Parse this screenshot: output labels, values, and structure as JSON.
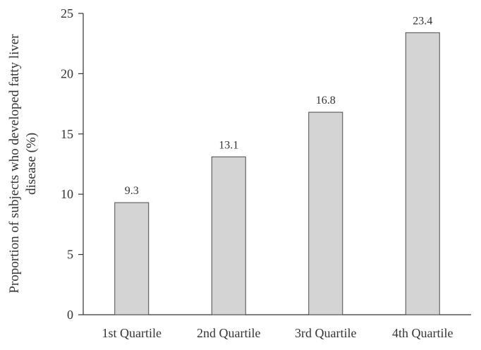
{
  "chart_data": {
    "type": "bar",
    "title": "",
    "xlabel": "",
    "ylabel_lines": [
      "Proportion of subjects who developed fatty liver",
      "disease (%)"
    ],
    "categories": [
      "1st Quartile",
      "2nd Quartile",
      "3rd Quartile",
      "4th Quartile"
    ],
    "values": [
      9.3,
      13.1,
      16.8,
      23.4
    ],
    "data_labels": [
      "9.3",
      "13.1",
      "16.8",
      "23.4"
    ],
    "yticks": [
      0,
      5,
      10,
      15,
      20,
      25
    ],
    "ytick_labels": [
      "0",
      "5",
      "10",
      "15",
      "20",
      "25"
    ],
    "ylim": [
      0,
      25
    ],
    "grid": false,
    "legend": "none",
    "colors": {
      "bar_fill": "#d4d4d4",
      "bar_stroke": "#4a4a4a",
      "axis": "#333333",
      "text": "#333333"
    }
  }
}
